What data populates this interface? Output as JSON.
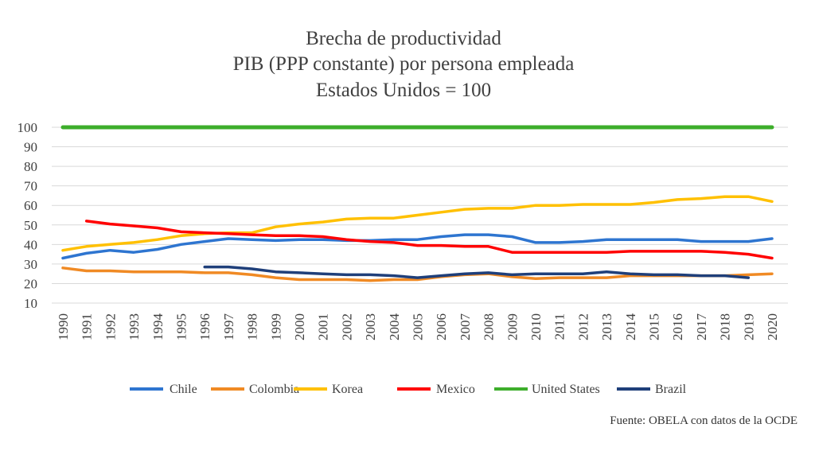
{
  "chart_data": {
    "type": "line",
    "title": "Brecha de productividad",
    "subtitle": "PIB (PPP constante) por persona empleada",
    "subtitle2": "Estados Unidos = 100",
    "ylim": [
      10,
      100
    ],
    "yticks": [
      10,
      20,
      30,
      40,
      50,
      60,
      70,
      80,
      90,
      100
    ],
    "grid": true,
    "legend_position": "bottom",
    "x": [
      1990,
      1991,
      1992,
      1993,
      1994,
      1995,
      1996,
      1997,
      1998,
      1999,
      2000,
      2001,
      2002,
      2003,
      2004,
      2005,
      2006,
      2007,
      2008,
      2009,
      2010,
      2011,
      2012,
      2013,
      2014,
      2015,
      2016,
      2017,
      2018,
      2019,
      2020
    ],
    "series": [
      {
        "name": "Chile",
        "color": "#2E75D0",
        "values": [
          33,
          35.5,
          37,
          36,
          37.5,
          40,
          41.5,
          43,
          42.5,
          42,
          42.5,
          42.5,
          42,
          42,
          42.5,
          42.5,
          44,
          45,
          45,
          44,
          41,
          41,
          41.5,
          42.5,
          42.5,
          42.5,
          42.5,
          41.5,
          41.5,
          41.5,
          43
        ]
      },
      {
        "name": "Colombia",
        "color": "#F08A24",
        "values": [
          28,
          26.5,
          26.5,
          26,
          26,
          26,
          25.5,
          25.5,
          24.5,
          23,
          22,
          22,
          22,
          21.5,
          22,
          22,
          23.5,
          24.5,
          25,
          23.5,
          22.5,
          23,
          23,
          23,
          24,
          24,
          24,
          24,
          24,
          24.5,
          25
        ]
      },
      {
        "name": "Korea",
        "color": "#FFC000",
        "values": [
          37,
          39,
          40,
          41,
          42.5,
          44.5,
          45.5,
          46,
          46,
          49,
          50.5,
          51.5,
          53,
          53.5,
          53.5,
          55,
          56.5,
          58,
          58.5,
          58.5,
          60,
          60,
          60.5,
          60.5,
          60.5,
          61.5,
          63,
          63.5,
          64.5,
          64.5,
          62
        ]
      },
      {
        "name": "Mexico",
        "color": "#FF0000",
        "values": [
          null,
          52,
          50.5,
          49.5,
          48.5,
          46.5,
          46,
          45.5,
          45,
          44.5,
          44.5,
          44,
          42.5,
          41.5,
          41,
          39.5,
          39.5,
          39,
          39,
          36,
          36,
          36,
          36,
          36,
          36.5,
          36.5,
          36.5,
          36.5,
          36,
          35,
          33
        ]
      },
      {
        "name": "United States",
        "color": "#3DAE2B",
        "values": [
          100,
          100,
          100,
          100,
          100,
          100,
          100,
          100,
          100,
          100,
          100,
          100,
          100,
          100,
          100,
          100,
          100,
          100,
          100,
          100,
          100,
          100,
          100,
          100,
          100,
          100,
          100,
          100,
          100,
          100,
          100
        ]
      },
      {
        "name": "Brazil",
        "color": "#1F3F7A",
        "values": [
          null,
          null,
          null,
          null,
          null,
          null,
          28.5,
          28.5,
          27.5,
          26,
          25.5,
          25,
          24.5,
          24.5,
          24,
          23,
          24,
          25,
          25.5,
          24.5,
          25,
          25,
          25,
          26,
          25,
          24.5,
          24.5,
          24,
          24,
          23,
          null
        ]
      }
    ]
  },
  "source": "Fuente: OBELA con datos de la OCDE"
}
